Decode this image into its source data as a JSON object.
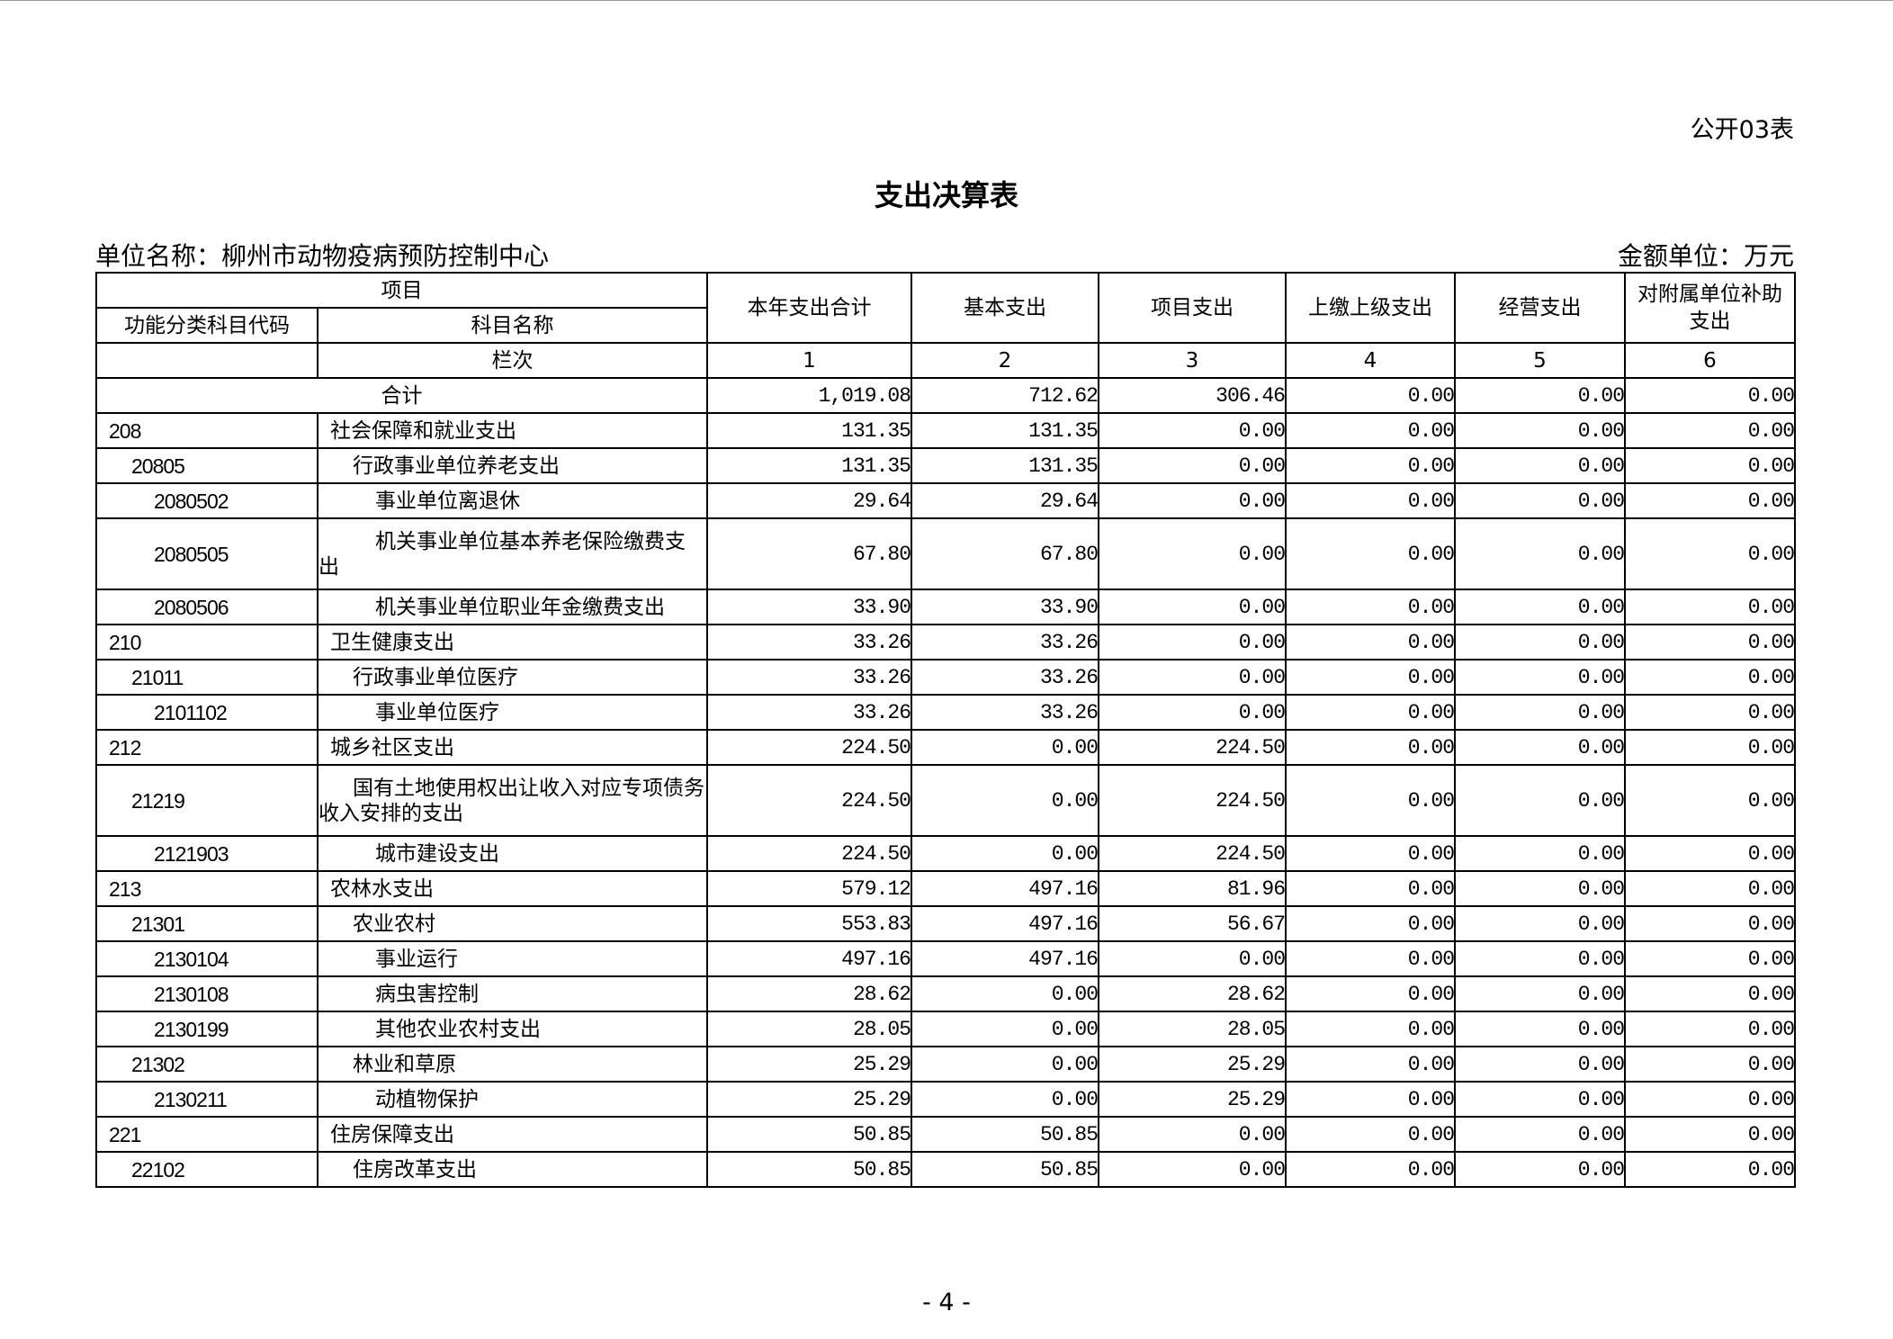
{
  "form_no": "公开03表",
  "title": "支出决算表",
  "unit_name": "单位名称：柳州市动物疫病预防控制中心",
  "unit_money": "金额单位：万元",
  "headers": {
    "item": "项目",
    "code": "功能分类科目代码",
    "name": "科目名称",
    "columns": [
      "本年支出合计",
      "基本支出",
      "项目支出",
      "上缴上级支出",
      "经营支出",
      "对附属单位补助支出"
    ],
    "seq_label": "栏次",
    "seq": [
      "1",
      "2",
      "3",
      "4",
      "5",
      "6"
    ]
  },
  "total": {
    "label": "合计",
    "values": [
      "1,019.08",
      "712.62",
      "306.46",
      "0.00",
      "0.00",
      "0.00"
    ]
  },
  "rows": [
    {
      "code": "208",
      "name": "社会保障和就业支出",
      "level": 1,
      "values": [
        "131.35",
        "131.35",
        "0.00",
        "0.00",
        "0.00",
        "0.00"
      ]
    },
    {
      "code": "20805",
      "name": "行政事业单位养老支出",
      "level": 2,
      "values": [
        "131.35",
        "131.35",
        "0.00",
        "0.00",
        "0.00",
        "0.00"
      ]
    },
    {
      "code": "2080502",
      "name": "事业单位离退休",
      "level": 3,
      "values": [
        "29.64",
        "29.64",
        "0.00",
        "0.00",
        "0.00",
        "0.00"
      ]
    },
    {
      "code": "2080505",
      "name": "机关事业单位基本养老保险缴费支出",
      "level": 3,
      "values": [
        "67.80",
        "67.80",
        "0.00",
        "0.00",
        "0.00",
        "0.00"
      ]
    },
    {
      "code": "2080506",
      "name": "机关事业单位职业年金缴费支出",
      "level": 3,
      "values": [
        "33.90",
        "33.90",
        "0.00",
        "0.00",
        "0.00",
        "0.00"
      ]
    },
    {
      "code": "210",
      "name": "卫生健康支出",
      "level": 1,
      "values": [
        "33.26",
        "33.26",
        "0.00",
        "0.00",
        "0.00",
        "0.00"
      ]
    },
    {
      "code": "21011",
      "name": "行政事业单位医疗",
      "level": 2,
      "values": [
        "33.26",
        "33.26",
        "0.00",
        "0.00",
        "0.00",
        "0.00"
      ]
    },
    {
      "code": "2101102",
      "name": "事业单位医疗",
      "level": 3,
      "values": [
        "33.26",
        "33.26",
        "0.00",
        "0.00",
        "0.00",
        "0.00"
      ]
    },
    {
      "code": "212",
      "name": "城乡社区支出",
      "level": 1,
      "values": [
        "224.50",
        "0.00",
        "224.50",
        "0.00",
        "0.00",
        "0.00"
      ]
    },
    {
      "code": "21219",
      "name": "国有土地使用权出让收入对应专项债务收入安排的支出",
      "level": 2,
      "values": [
        "224.50",
        "0.00",
        "224.50",
        "0.00",
        "0.00",
        "0.00"
      ]
    },
    {
      "code": "2121903",
      "name": "城市建设支出",
      "level": 3,
      "values": [
        "224.50",
        "0.00",
        "224.50",
        "0.00",
        "0.00",
        "0.00"
      ]
    },
    {
      "code": "213",
      "name": "农林水支出",
      "level": 1,
      "values": [
        "579.12",
        "497.16",
        "81.96",
        "0.00",
        "0.00",
        "0.00"
      ]
    },
    {
      "code": "21301",
      "name": "农业农村",
      "level": 2,
      "values": [
        "553.83",
        "497.16",
        "56.67",
        "0.00",
        "0.00",
        "0.00"
      ]
    },
    {
      "code": "2130104",
      "name": "事业运行",
      "level": 3,
      "values": [
        "497.16",
        "497.16",
        "0.00",
        "0.00",
        "0.00",
        "0.00"
      ]
    },
    {
      "code": "2130108",
      "name": "病虫害控制",
      "level": 3,
      "values": [
        "28.62",
        "0.00",
        "28.62",
        "0.00",
        "0.00",
        "0.00"
      ]
    },
    {
      "code": "2130199",
      "name": "其他农业农村支出",
      "level": 3,
      "values": [
        "28.05",
        "0.00",
        "28.05",
        "0.00",
        "0.00",
        "0.00"
      ]
    },
    {
      "code": "21302",
      "name": "林业和草原",
      "level": 2,
      "values": [
        "25.29",
        "0.00",
        "25.29",
        "0.00",
        "0.00",
        "0.00"
      ]
    },
    {
      "code": "2130211",
      "name": "动植物保护",
      "level": 3,
      "values": [
        "25.29",
        "0.00",
        "25.29",
        "0.00",
        "0.00",
        "0.00"
      ]
    },
    {
      "code": "221",
      "name": "住房保障支出",
      "level": 1,
      "values": [
        "50.85",
        "50.85",
        "0.00",
        "0.00",
        "0.00",
        "0.00"
      ]
    },
    {
      "code": "22102",
      "name": "住房改革支出",
      "level": 2,
      "values": [
        "50.85",
        "50.85",
        "0.00",
        "0.00",
        "0.00",
        "0.00"
      ]
    }
  ],
  "page_number": "- 4 -"
}
